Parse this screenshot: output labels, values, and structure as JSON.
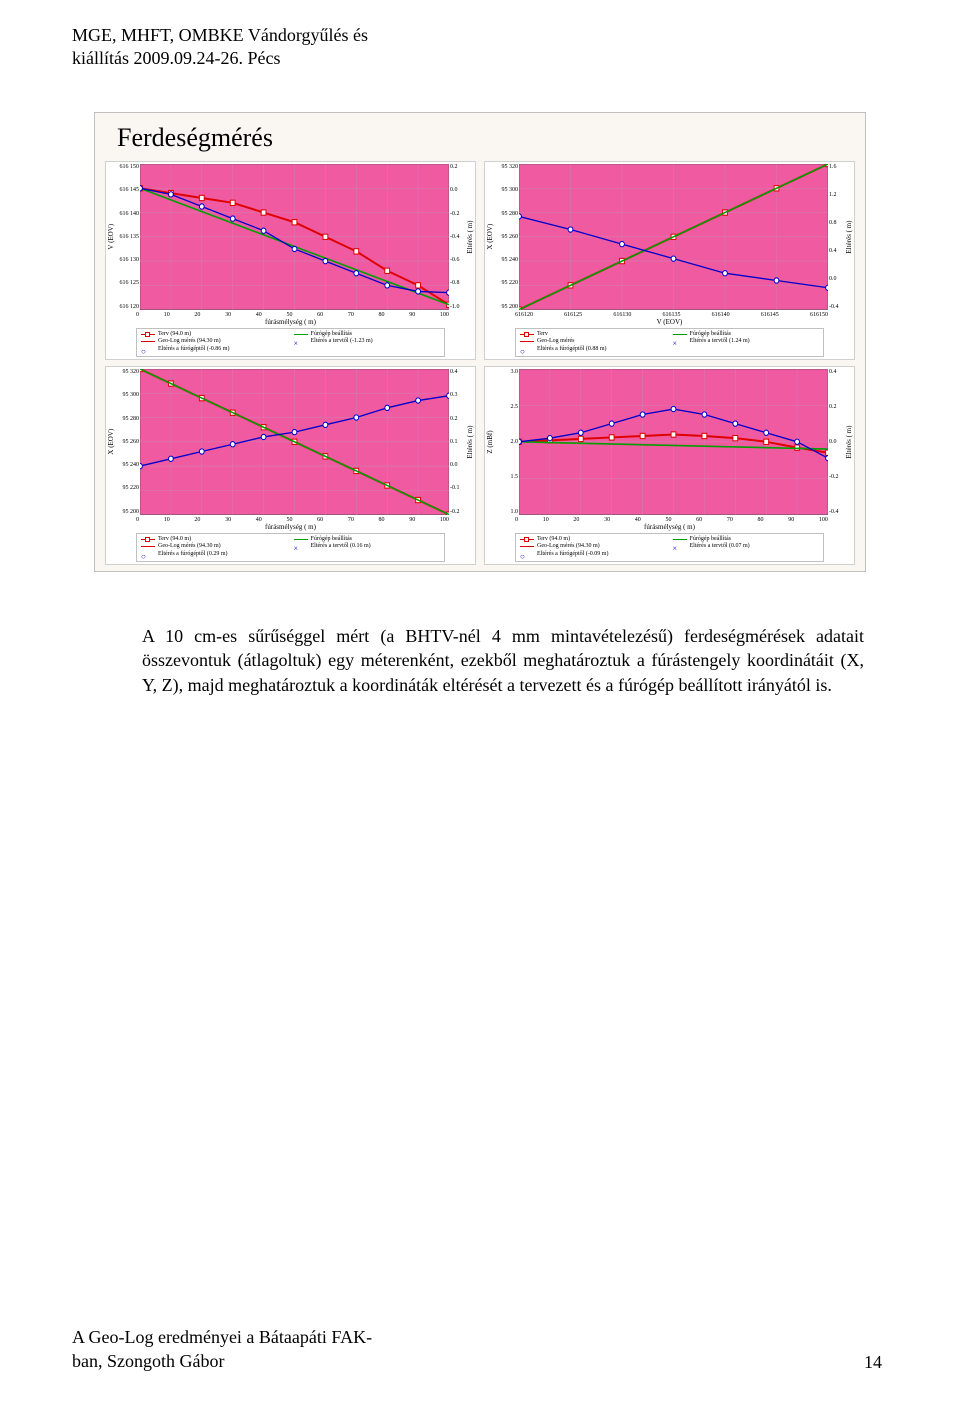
{
  "header": {
    "line1": "MGE, MHFT, OMBKE Vándorgyűlés és",
    "line2": "kiállítás 2009.09.24-26. Pécs"
  },
  "figure": {
    "title": "Ferdeségmérés",
    "background": "#faf7f3",
    "panels": [
      {
        "ylabel_left": "V (EOV)",
        "ylabel_right": "Eltérés ( m)",
        "xlabel": "fúrásmélység ( m)",
        "yticks_left": [
          "616 150",
          "616 145",
          "616 140",
          "616 135",
          "616 130",
          "616 125",
          "616 120"
        ],
        "yticks_right": [
          "0.2",
          "0.0",
          "-0.2",
          "-0.4",
          "-0.6",
          "-0.8",
          "-1.0"
        ],
        "xticks": [
          "0",
          "10",
          "20",
          "30",
          "40",
          "50",
          "60",
          "70",
          "80",
          "90",
          "100"
        ],
        "plot_bg": "#ef5aa0",
        "grid_color": "#d080b0",
        "series": [
          {
            "color": "#e00000",
            "width": 1.5,
            "marker": "square",
            "pts": [
              [
                0,
                145
              ],
              [
                10,
                144
              ],
              [
                20,
                143
              ],
              [
                30,
                142
              ],
              [
                40,
                140
              ],
              [
                50,
                138
              ],
              [
                60,
                135
              ],
              [
                70,
                132
              ],
              [
                80,
                128
              ],
              [
                90,
                125
              ],
              [
                100,
                121
              ]
            ],
            "yrange": [
              120,
              150
            ]
          },
          {
            "color": "#00a000",
            "width": 1.2,
            "marker": "none",
            "pts": [
              [
                0,
                145
              ],
              [
                100,
                121
              ]
            ],
            "yrange": [
              120,
              150
            ]
          },
          {
            "color": "#0000cc",
            "width": 1,
            "marker": "circle",
            "pts": [
              [
                0,
                0.0
              ],
              [
                10,
                -0.05
              ],
              [
                20,
                -0.15
              ],
              [
                30,
                -0.25
              ],
              [
                40,
                -0.35
              ],
              [
                50,
                -0.5
              ],
              [
                60,
                -0.6
              ],
              [
                70,
                -0.7
              ],
              [
                80,
                -0.8
              ],
              [
                90,
                -0.85
              ],
              [
                100,
                -0.86
              ]
            ],
            "yrange": [
              -1.0,
              0.2
            ],
            "right": true
          }
        ],
        "legend": [
          {
            "swatch": "line-red-sq",
            "text": "Terv (94.0 m)"
          },
          {
            "swatch": "line-green",
            "text": "Fúrógép beállítás"
          },
          {
            "swatch": "line-red",
            "text": "Geo-Log mérés (94.30 m)"
          },
          {
            "swatch": "mark-x",
            "text": "Eltérés a tervtől (-1.23 m)"
          },
          {
            "swatch": "mark-o",
            "text": "Eltérés a fúrógéptől (-0.86 m)"
          }
        ]
      },
      {
        "ylabel_left": "X (EOV)",
        "ylabel_right": "Eltérés ( m)",
        "xlabel": "V (EOV)",
        "yticks_left": [
          "95 320",
          "95 300",
          "95 280",
          "95 260",
          "95 240",
          "95 220",
          "95 200"
        ],
        "yticks_right": [
          "1.6",
          "1.2",
          "0.8",
          "0.4",
          "0.0",
          "-0.4"
        ],
        "xticks": [
          "616120",
          "616125",
          "616130",
          "616135",
          "616140",
          "616145",
          "616150"
        ],
        "plot_bg": "#ef5aa0",
        "grid_color": "#d080b0",
        "series": [
          {
            "color": "#e00000",
            "width": 1.5,
            "marker": "square",
            "pts": [
              [
                120,
                200
              ],
              [
                125,
                220
              ],
              [
                130,
                240
              ],
              [
                135,
                260
              ],
              [
                140,
                280
              ],
              [
                145,
                300
              ],
              [
                150,
                320
              ]
            ],
            "xrange": [
              120,
              150
            ],
            "yrange": [
              200,
              320
            ]
          },
          {
            "color": "#00a000",
            "width": 1.2,
            "marker": "none",
            "pts": [
              [
                120,
                200
              ],
              [
                150,
                320
              ]
            ],
            "xrange": [
              120,
              150
            ],
            "yrange": [
              200,
              320
            ]
          },
          {
            "color": "#0000cc",
            "width": 1,
            "marker": "circle",
            "pts": [
              [
                120,
                0.88
              ],
              [
                125,
                0.7
              ],
              [
                130,
                0.5
              ],
              [
                135,
                0.3
              ],
              [
                140,
                0.1
              ],
              [
                145,
                0.0
              ],
              [
                150,
                -0.1
              ]
            ],
            "xrange": [
              120,
              150
            ],
            "yrange": [
              -0.4,
              1.6
            ],
            "right": true
          }
        ],
        "legend": [
          {
            "swatch": "line-red-sq",
            "text": "Terv"
          },
          {
            "swatch": "line-green",
            "text": "Fúrógép beállítás"
          },
          {
            "swatch": "line-red",
            "text": "Geo-Log mérés"
          },
          {
            "swatch": "mark-x",
            "text": "Eltérés a tervtől (1.24 m)"
          },
          {
            "swatch": "mark-o",
            "text": "Eltérés a fúrógéptől (0.88 m)"
          }
        ]
      },
      {
        "ylabel_left": "X (EOV)",
        "ylabel_right": "Eltérés ( m)",
        "xlabel": "fúrásmélység ( m)",
        "yticks_left": [
          "95 320",
          "95 300",
          "95 280",
          "95 260",
          "95 240",
          "95 220",
          "95 200"
        ],
        "yticks_right": [
          "0.4",
          "0.3",
          "0.2",
          "0.1",
          "0.0",
          "-0.1",
          "-0.2"
        ],
        "xticks": [
          "0",
          "10",
          "20",
          "30",
          "40",
          "50",
          "60",
          "70",
          "80",
          "90",
          "100"
        ],
        "plot_bg": "#ef5aa0",
        "grid_color": "#d080b0",
        "series": [
          {
            "color": "#e00000",
            "width": 1.5,
            "marker": "square",
            "pts": [
              [
                0,
                320
              ],
              [
                10,
                308
              ],
              [
                20,
                296
              ],
              [
                30,
                284
              ],
              [
                40,
                272
              ],
              [
                50,
                260
              ],
              [
                60,
                248
              ],
              [
                70,
                236
              ],
              [
                80,
                224
              ],
              [
                90,
                212
              ],
              [
                100,
                200
              ]
            ],
            "yrange": [
              200,
              320
            ]
          },
          {
            "color": "#00a000",
            "width": 1.2,
            "marker": "none",
            "pts": [
              [
                0,
                320
              ],
              [
                100,
                200
              ]
            ],
            "yrange": [
              200,
              320
            ]
          },
          {
            "color": "#0000cc",
            "width": 1,
            "marker": "circle",
            "pts": [
              [
                0,
                0.0
              ],
              [
                10,
                0.03
              ],
              [
                20,
                0.06
              ],
              [
                30,
                0.09
              ],
              [
                40,
                0.12
              ],
              [
                50,
                0.14
              ],
              [
                60,
                0.17
              ],
              [
                70,
                0.2
              ],
              [
                80,
                0.24
              ],
              [
                90,
                0.27
              ],
              [
                100,
                0.29
              ]
            ],
            "yrange": [
              -0.2,
              0.4
            ],
            "right": true
          }
        ],
        "legend": [
          {
            "swatch": "line-red-sq",
            "text": "Terv (94.0 m)"
          },
          {
            "swatch": "line-green",
            "text": "Fúrógép beállítás"
          },
          {
            "swatch": "line-red",
            "text": "Geo-Log mérés (94.30 m)"
          },
          {
            "swatch": "mark-x",
            "text": "Eltérés a tervtől (0.16 m)"
          },
          {
            "swatch": "mark-o",
            "text": "Eltérés a fúrógéptől (0.29 m)"
          }
        ]
      },
      {
        "ylabel_left": "Z (mBf)",
        "ylabel_right": "Eltérés ( m)",
        "xlabel": "fúrásmélység ( m)",
        "yticks_left": [
          "3.0",
          "2.5",
          "2.0",
          "1.5",
          "1.0"
        ],
        "yticks_right": [
          "0.4",
          "0.2",
          "0.0",
          "-0.2",
          "-0.4"
        ],
        "xticks": [
          "0",
          "10",
          "20",
          "30",
          "40",
          "50",
          "60",
          "70",
          "80",
          "90",
          "100"
        ],
        "plot_bg": "#ef5aa0",
        "grid_color": "#d080b0",
        "series": [
          {
            "color": "#e00000",
            "width": 1.5,
            "marker": "square",
            "pts": [
              [
                0,
                2.0
              ],
              [
                10,
                2.02
              ],
              [
                20,
                2.04
              ],
              [
                30,
                2.06
              ],
              [
                40,
                2.08
              ],
              [
                50,
                2.1
              ],
              [
                60,
                2.08
              ],
              [
                70,
                2.05
              ],
              [
                80,
                2.0
              ],
              [
                90,
                1.92
              ],
              [
                100,
                1.85
              ]
            ],
            "yrange": [
              1.0,
              3.0
            ]
          },
          {
            "color": "#00a000",
            "width": 1.2,
            "marker": "none",
            "pts": [
              [
                0,
                2.0
              ],
              [
                100,
                1.9
              ]
            ],
            "yrange": [
              1.0,
              3.0
            ]
          },
          {
            "color": "#0000cc",
            "width": 1,
            "marker": "circle",
            "pts": [
              [
                0,
                0.0
              ],
              [
                10,
                0.02
              ],
              [
                20,
                0.05
              ],
              [
                30,
                0.1
              ],
              [
                40,
                0.15
              ],
              [
                50,
                0.18
              ],
              [
                60,
                0.15
              ],
              [
                70,
                0.1
              ],
              [
                80,
                0.05
              ],
              [
                90,
                0.0
              ],
              [
                100,
                -0.09
              ]
            ],
            "yrange": [
              -0.4,
              0.4
            ],
            "right": true
          }
        ],
        "legend": [
          {
            "swatch": "line-red-sq",
            "text": "Terv (94.0 m)"
          },
          {
            "swatch": "line-green",
            "text": "Fúrógép beállítás"
          },
          {
            "swatch": "line-red",
            "text": "Geo-Log mérés (94.30 m)"
          },
          {
            "swatch": "mark-x",
            "text": "Eltérés a tervtől (0.07 m)"
          },
          {
            "swatch": "mark-o",
            "text": "Eltérés a fúrógéptől (-0.09 m)"
          }
        ]
      }
    ]
  },
  "paragraph": "A 10 cm-es sűrűséggel mért (a BHTV-nél 4 mm mintavételezésű) ferdeségmérések adatait összevontuk (átlagoltuk) egy méterenként, ezekből meghatároztuk a fúrástengely koordinátáit (X, Y, Z), majd meghatároztuk a koordináták eltérését a tervezett és a fúrógép beállított irányától is.",
  "footer": {
    "line1": "A Geo-Log eredményei a Bátaapáti FAK-",
    "line2": "ban, Szongoth Gábor",
    "page": "14"
  },
  "colors": {
    "red": "#e00000",
    "green": "#00a000",
    "blue": "#0000cc",
    "pink": "#ef5aa0"
  }
}
